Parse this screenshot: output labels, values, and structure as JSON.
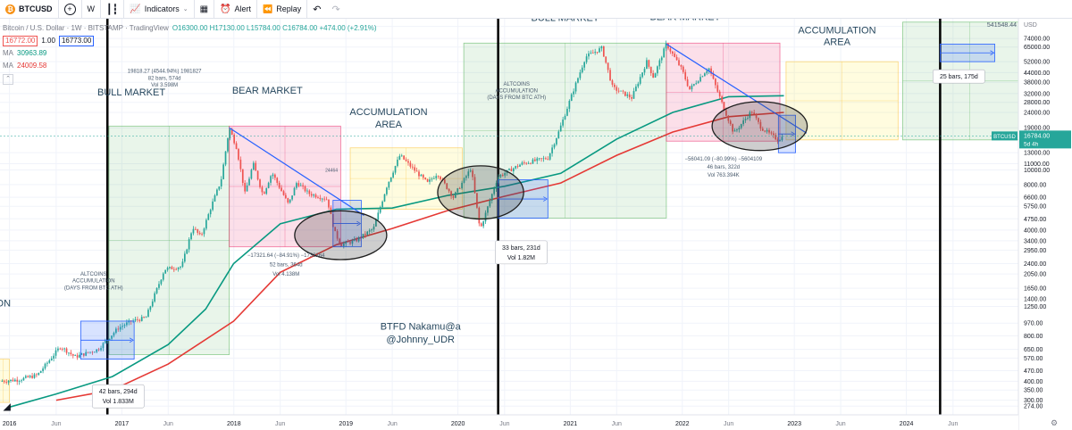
{
  "toolbar": {
    "symbol": "BTCUSD",
    "interval": "W",
    "indicators": "Indicators",
    "alert": "Alert",
    "replay": "Replay"
  },
  "legend": {
    "title": "Bitcoin / U.S. Dollar · 1W · BITSTAMP · TradingView",
    "open": "O16300.00",
    "high": "H17130.00",
    "low": "L15784.00",
    "close": "C16784.00",
    "change": "+474.00 (+2.91%)",
    "bid": "16772.00",
    "spread": "1.00",
    "ask": "16773.00",
    "ma1_label": "MA",
    "ma1_value": "30963.89",
    "ma2_label": "MA",
    "ma2_value": "24009.58"
  },
  "colors": {
    "green_zone": "#4caf50",
    "red_zone": "#e91e63",
    "yellow_zone": "#ffeb3b",
    "blue_box": "#2962ff",
    "ma_green": "#089981",
    "ma_red": "#e53935",
    "up": "#26a69a",
    "down": "#ef5350"
  },
  "chart_data": {
    "type": "candlestick",
    "scale": "log",
    "ylim": [
      240,
      100000
    ],
    "xlim": [
      "2015-12-01",
      "2024-12-31"
    ],
    "y_ticks": [
      "274.00",
      "300.00",
      "350.00",
      "400.00",
      "470.00",
      "570.00",
      "650.00",
      "800.00",
      "970.00",
      "1250.00",
      "1400.00",
      "1650.00",
      "2050.00",
      "2400.00",
      "2950.00",
      "3400.00",
      "4000.00",
      "4750.00",
      "5750.00",
      "6600.00",
      "8000.00",
      "10000.00",
      "11000.00",
      "13000.00",
      "19000.00",
      "24000.00",
      "28000.00",
      "32000.00",
      "38000.00",
      "44000.00",
      "52000.00",
      "65000.00",
      "74000.00",
      "89000.00"
    ],
    "y_ticks_plain": [
      "USD"
    ],
    "x_ticks": [
      {
        "label": "2016",
        "date": "2016-01-01"
      },
      {
        "label": "Jun",
        "date": "2016-06-01"
      },
      {
        "label": "2017",
        "date": "2017-01-01"
      },
      {
        "label": "Jun",
        "date": "2017-06-01"
      },
      {
        "label": "2018",
        "date": "2018-01-01"
      },
      {
        "label": "Jun",
        "date": "2018-06-01"
      },
      {
        "label": "2019",
        "date": "2019-01-01"
      },
      {
        "label": "Jun",
        "date": "2019-06-01"
      },
      {
        "label": "2020",
        "date": "2020-01-01"
      },
      {
        "label": "Jun",
        "date": "2020-06-01"
      },
      {
        "label": "2021",
        "date": "2021-01-01"
      },
      {
        "label": "Jun",
        "date": "2021-06-01"
      },
      {
        "label": "2022",
        "date": "2022-01-01"
      },
      {
        "label": "Jun",
        "date": "2022-06-01"
      },
      {
        "label": "2023",
        "date": "2023-01-01"
      },
      {
        "label": "Jun",
        "date": "2023-06-01"
      },
      {
        "label": "2024",
        "date": "2024-01-01"
      },
      {
        "label": "Jun",
        "date": "2024-06-01"
      }
    ],
    "price_points": [
      [
        "2015-12-01",
        400
      ],
      [
        "2016-02-01",
        410
      ],
      [
        "2016-04-01",
        440
      ],
      [
        "2016-06-15",
        680
      ],
      [
        "2016-08-01",
        580
      ],
      [
        "2016-10-15",
        650
      ],
      [
        "2016-12-20",
        900
      ],
      [
        "2017-02-01",
        1000
      ],
      [
        "2017-03-20",
        1050
      ],
      [
        "2017-05-20",
        2200
      ],
      [
        "2017-07-15",
        2300
      ],
      [
        "2017-08-20",
        4200
      ],
      [
        "2017-09-15",
        3600
      ],
      [
        "2017-10-20",
        5800
      ],
      [
        "2017-11-20",
        8500
      ],
      [
        "2017-12-17",
        19000
      ],
      [
        "2018-01-10",
        14000
      ],
      [
        "2018-02-06",
        7000
      ],
      [
        "2018-03-05",
        11000
      ],
      [
        "2018-04-06",
        6800
      ],
      [
        "2018-05-05",
        9600
      ],
      [
        "2018-06-28",
        5900
      ],
      [
        "2018-07-25",
        8300
      ],
      [
        "2018-09-01",
        7000
      ],
      [
        "2018-11-01",
        6400
      ],
      [
        "2018-11-25",
        3900
      ],
      [
        "2018-12-15",
        3200
      ],
      [
        "2019-02-01",
        3400
      ],
      [
        "2019-04-01",
        4100
      ],
      [
        "2019-05-15",
        7900
      ],
      [
        "2019-06-26",
        12500
      ],
      [
        "2019-08-01",
        10500
      ],
      [
        "2019-09-24",
        8200
      ],
      [
        "2019-10-26",
        9500
      ],
      [
        "2019-12-17",
        6600
      ],
      [
        "2020-02-13",
        10300
      ],
      [
        "2020-03-13",
        4000
      ],
      [
        "2020-05-10",
        9000
      ],
      [
        "2020-07-27",
        11000
      ],
      [
        "2020-10-20",
        12000
      ],
      [
        "2020-11-25",
        18000
      ],
      [
        "2020-12-31",
        29000
      ],
      [
        "2021-02-20",
        56000
      ],
      [
        "2021-04-14",
        64000
      ],
      [
        "2021-05-19",
        35000
      ],
      [
        "2021-07-20",
        30000
      ],
      [
        "2021-09-07",
        52000
      ],
      [
        "2021-09-29",
        41000
      ],
      [
        "2021-11-10",
        68000
      ],
      [
        "2021-12-31",
        46000
      ],
      [
        "2022-01-24",
        34000
      ],
      [
        "2022-03-28",
        47500
      ],
      [
        "2022-05-12",
        27000
      ],
      [
        "2022-06-18",
        17500
      ],
      [
        "2022-08-15",
        24500
      ],
      [
        "2022-09-15",
        19000
      ],
      [
        "2022-11-09",
        15800
      ],
      [
        "2022-11-28",
        16784
      ]
    ],
    "ma_fast": [
      [
        "2016-01-01",
        270
      ],
      [
        "2016-06-01",
        330
      ],
      [
        "2016-12-01",
        430
      ],
      [
        "2017-06-01",
        700
      ],
      [
        "2017-10-01",
        1200
      ],
      [
        "2017-12-31",
        2400
      ],
      [
        "2018-06-01",
        4400
      ],
      [
        "2018-12-01",
        5500
      ],
      [
        "2019-06-01",
        5600
      ],
      [
        "2019-12-01",
        6800
      ],
      [
        "2020-06-01",
        7800
      ],
      [
        "2020-12-01",
        9500
      ],
      [
        "2021-06-01",
        16000
      ],
      [
        "2021-12-01",
        24000
      ],
      [
        "2022-06-01",
        30500
      ],
      [
        "2022-11-28",
        30963.89
      ]
    ],
    "ma_slow": [
      [
        "2016-06-01",
        300
      ],
      [
        "2016-12-01",
        350
      ],
      [
        "2017-06-01",
        520
      ],
      [
        "2017-12-31",
        1000
      ],
      [
        "2018-06-01",
        2100
      ],
      [
        "2018-12-01",
        3200
      ],
      [
        "2019-06-01",
        4100
      ],
      [
        "2019-12-01",
        5400
      ],
      [
        "2020-06-01",
        6700
      ],
      [
        "2020-12-01",
        8200
      ],
      [
        "2021-06-01",
        12500
      ],
      [
        "2021-12-01",
        17800
      ],
      [
        "2022-06-01",
        22500
      ],
      [
        "2022-11-28",
        24009.58
      ]
    ],
    "vertical_lines": [
      "2016-11-15",
      "2020-05-11",
      "2024-04-20"
    ],
    "zones": [
      {
        "kind": "green",
        "x0": "2016-11-20",
        "x1": "2017-12-17",
        "y0": 600,
        "y1": 19500
      },
      {
        "kind": "red",
        "x0": "2017-12-17",
        "x1": "2018-12-15",
        "y0": 3100,
        "y1": 19500
      },
      {
        "kind": "yellow",
        "x0": "2019-01-15",
        "x1": "2020-01-15",
        "y0": 5500,
        "y1": 14000
      },
      {
        "kind": "green",
        "x0": "2020-01-20",
        "x1": "2021-11-10",
        "y0": 4800,
        "y1": 69000
      },
      {
        "kind": "red",
        "x0": "2021-11-10",
        "x1": "2022-11-15",
        "y0": 15500,
        "y1": 69000
      },
      {
        "kind": "yellow",
        "x0": "2022-12-05",
        "x1": "2023-12-05",
        "y0": 15800,
        "y1": 52000
      },
      {
        "kind": "green",
        "x0": "2023-12-20",
        "x1": "2025-03-01",
        "y0": 15800,
        "y1": 95000
      },
      {
        "kind": "yellow",
        "x0": "2015-11-20",
        "x1": "2016-01-01",
        "y0": 290,
        "y1": 560
      }
    ],
    "blue_boxes": [
      {
        "x0": "2016-08-20",
        "x1": "2017-02-10",
        "y0": 560,
        "y1": 1000
      },
      {
        "x0": "2018-11-20",
        "x1": "2019-02-20",
        "y0": 3100,
        "y1": 6300
      },
      {
        "x0": "2020-05-11",
        "x1": "2020-10-20",
        "y0": 4800,
        "y1": 8600
      },
      {
        "x0": "2022-11-10",
        "x1": "2023-01-05",
        "y0": 13000,
        "y1": 23000
      },
      {
        "x0": "2024-04-20",
        "x1": "2024-10-15",
        "y0": 52000,
        "y1": 68000
      }
    ],
    "ellipses": [
      {
        "cx": "2018-12-15",
        "cy": 3700,
        "rx_days": 150,
        "ry_factor": 1.45
      },
      {
        "cx": "2020-03-15",
        "cy": 7100,
        "rx_days": 140,
        "ry_factor": 1.5
      },
      {
        "cx": "2022-09-10",
        "cy": 19500,
        "rx_days": 155,
        "ry_factor": 1.45
      }
    ],
    "trendlines": [
      {
        "x0": "2017-12-17",
        "y0": 19000,
        "x1": "2019-03-01",
        "y1": 5000
      },
      {
        "x0": "2021-11-10",
        "y0": 68000,
        "x1": "2023-02-10",
        "y1": 17500
      }
    ],
    "annotations": [
      {
        "text": "BULL MARKET",
        "x": "2017-02-01",
        "y": 31000,
        "size": 11
      },
      {
        "text": "BEAR MARKET",
        "x": "2018-04-20",
        "y": 32000,
        "size": 11
      },
      {
        "text": "ACCUMULATION",
        "x": "2019-05-20",
        "y": 23000,
        "size": 11
      },
      {
        "text": "AREA",
        "x": "2019-05-20",
        "y": 19000,
        "size": 11
      },
      {
        "text": "BULL MARKET",
        "x": "2020-12-15",
        "y": 97000,
        "size": 11
      },
      {
        "text": "BEAR MARKET",
        "x": "2022-01-10",
        "y": 98000,
        "size": 11
      },
      {
        "text": "ACCUMULATION",
        "x": "2023-05-20",
        "y": 80000,
        "size": 11
      },
      {
        "text": "AREA",
        "x": "2023-05-20",
        "y": 67000,
        "size": 11
      },
      {
        "text": "ON",
        "x": "2015-12-12",
        "y": 1250,
        "size": 11
      },
      {
        "text": "BTFD Nakamu@a",
        "x": "2019-09-01",
        "y": 880,
        "size": 11
      },
      {
        "text": "@Johnny_UDR",
        "x": "2019-09-01",
        "y": 720,
        "size": 11
      },
      {
        "text": "ALTCOINS",
        "x": "2016-10-01",
        "y": 2000,
        "size": 6
      },
      {
        "text": "ACCUMULATION",
        "x": "2016-10-01",
        "y": 1800,
        "size": 6
      },
      {
        "text": "(DAYS FROM BTC ATH)",
        "x": "2016-10-01",
        "y": 1620,
        "size": 6
      },
      {
        "text": "ALTCOINS",
        "x": "2020-07-10",
        "y": 36000,
        "size": 6
      },
      {
        "text": "ACCUMULATION",
        "x": "2020-07-10",
        "y": 32500,
        "size": 6
      },
      {
        "text": "(DAYS FROM BTC ATH)",
        "x": "2020-07-10",
        "y": 29500,
        "size": 6
      },
      {
        "text": "ALTCOINS",
        "x": "2024-06-20",
        "y": 130000,
        "size": 6
      },
      {
        "text": "ACCUMULATION",
        "x": "2024-06-20",
        "y": 118000,
        "size": 6
      },
      {
        "text": "(days from BTC ATH)",
        "x": "2024-06-20",
        "y": 107000,
        "size": 6
      },
      {
        "text": "19818.27 (4544.94%) 1981827",
        "x": "2017-05-20",
        "y": 44000,
        "size": 6
      },
      {
        "text": "82 bars, 574d",
        "x": "2017-05-20",
        "y": 39500,
        "size": 6
      },
      {
        "text": "Vol 3.598M",
        "x": "2017-05-20",
        "y": 35500,
        "size": 6
      },
      {
        "text": "−17321.64 (−84.91%) −1732164",
        "x": "2018-06-20",
        "y": 2650,
        "size": 6
      },
      {
        "text": "52 bars, 364d",
        "x": "2018-06-20",
        "y": 2300,
        "size": 6
      },
      {
        "text": "Vol 4.138M",
        "x": "2018-06-20",
        "y": 2000,
        "size": 6
      },
      {
        "text": "65438.08 (1712.34%) 6543808",
        "x": "2020-12-25",
        "y": 130000,
        "size": 6
      },
      {
        "text": "87 bars, 609d",
        "x": "2020-12-25",
        "y": 116000,
        "size": 6
      },
      {
        "text": "Vol 4.347M",
        "x": "2020-12-25",
        "y": 103000,
        "size": 6
      },
      {
        "text": "−56041.09 (−80.99%) −5604109",
        "x": "2022-05-15",
        "y": 11500,
        "size": 6
      },
      {
        "text": "46 bars, 322d",
        "x": "2022-05-15",
        "y": 10200,
        "size": 6
      },
      {
        "text": "Vol 763.394K",
        "x": "2022-05-15",
        "y": 9050,
        "size": 6
      },
      {
        "text": "ALTCOINS",
        "x": "2024-06-20",
        "y": 130000,
        "size": 0
      },
      {
        "text": "24464",
        "x": "2018-11-15",
        "y": 9700,
        "size": 5
      }
    ],
    "labels_boxes": [
      {
        "lines": [
          "42 bars, 294d",
          "Vol 1.833M"
        ],
        "x": "2016-12-20",
        "y": 380
      },
      {
        "lines": [
          "33 bars, 231d",
          "Vol 1.82M"
        ],
        "x": "2020-07-25",
        "y": 3400
      },
      {
        "lines": [
          "25 bars, 175d"
        ],
        "x": "2024-06-20",
        "y": 46000
      }
    ],
    "top_right_readout": "541548.44",
    "top_right_ratio": "90",
    "last_price": {
      "label": "BTCUSD",
      "price": "16784.00",
      "countdown": "5d 4h",
      "value": 16784
    }
  }
}
